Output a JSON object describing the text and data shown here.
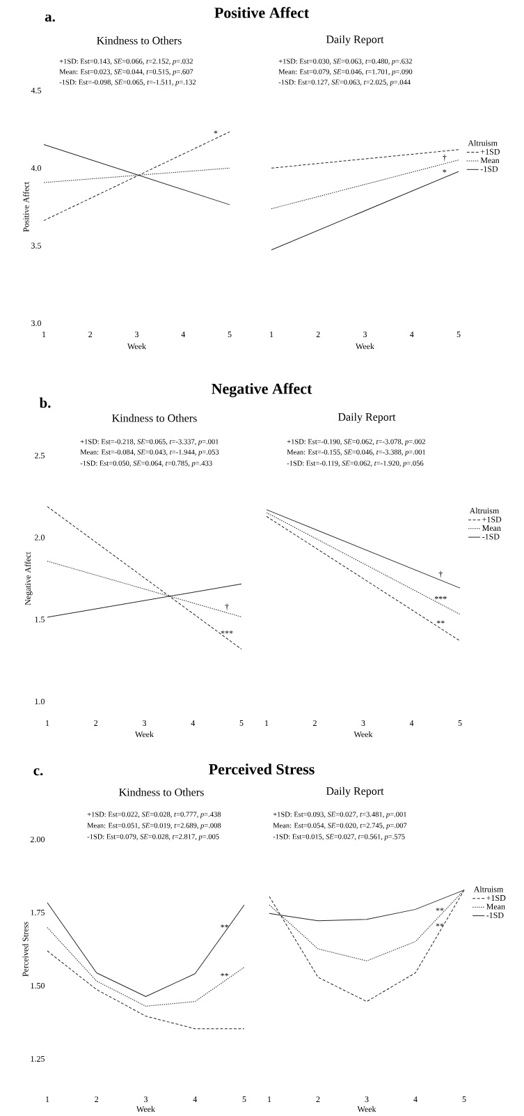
{
  "chart_data": [
    {
      "type": "line",
      "title": "Positive Affect",
      "subtitle": "Kindness to Others",
      "xlabel": "Week",
      "ylabel": "Positive Affect",
      "xlim": [
        1,
        5
      ],
      "xticks": [
        1,
        2,
        3,
        4,
        5
      ],
      "ylim": [
        3,
        4.5
      ],
      "yticks": [
        {
          "value": 3,
          "label": "3.0"
        },
        3.5,
        {
          "value": 4,
          "label": "4.0"
        },
        4.5
      ],
      "annotations": [
        "a.",
        "+1SD: Est=0.143, *SE*=0.066, *t*=2.152, *p*=.032",
        "Mean: Est=0.023, *SE*=0.044, *t*=0.515, *p*=.607",
        "-1SD: Est=-0.098, *SE*=0.065, *t*=-1.511, *p*=.132",
        {
          "text": "*",
          "x": 4.7,
          "y": 4.191
        }
      ],
      "series": [
        {
          "color": "#222222",
          "line_style": "dashed",
          "x": [
            1,
            5
          ],
          "values": [
            3.662,
            4.234
          ]
        },
        {
          "color": "#222222",
          "line_style": "dotted",
          "x": [
            1,
            5
          ],
          "values": [
            3.907,
            4.0
          ]
        },
        {
          "color": "#222222",
          "line_style": "solid",
          "x": [
            1,
            5
          ],
          "values": [
            4.152,
            3.764
          ]
        }
      ]
    },
    {
      "type": "line",
      "subtitle": "Daily Report",
      "xlabel": "Week",
      "xlim": [
        1,
        5
      ],
      "xticks": [
        1,
        2,
        3,
        4,
        5
      ],
      "ylim": [
        3,
        4.5
      ],
      "tick_labels": "x",
      "legend": "right",
      "legend_title": "Altruism",
      "annotations": [
        "+1SD: Est=0.030, *SE*=0.063, *t*=0.480, *p*=.632",
        "Mean: Est=0.079, *SE*=0.046, *t*=1.701, *p*=.090",
        "-1SD: Est=0.127, *SE*=0.063, *t*=2.025, *p*=.044",
        {
          "text": "†",
          "x": 4.7,
          "y": 4.028
        },
        {
          "text": "*",
          "x": 4.7,
          "y": 3.94
        }
      ],
      "series": [
        {
          "name": "+1SD",
          "color": "#222222",
          "line_style": "dashed",
          "x": [
            1,
            5
          ],
          "values": [
            4.0,
            4.119
          ]
        },
        {
          "name": "Mean",
          "color": "#222222",
          "line_style": "dotted",
          "x": [
            1,
            5
          ],
          "values": [
            3.738,
            4.052
          ]
        },
        {
          "name": "-1SD",
          "color": "#222222",
          "line_style": "solid",
          "x": [
            1,
            5
          ],
          "values": [
            3.473,
            3.978
          ]
        }
      ]
    },
    {
      "type": "line",
      "title": "Negative Affect",
      "subtitle": "Kindness to Others",
      "xlabel": "Week",
      "ylabel": "Negative Affect",
      "xlim": [
        1,
        5
      ],
      "xticks": [
        1,
        2,
        3,
        4,
        5
      ],
      "ylim": [
        1,
        2.5
      ],
      "yticks": [
        {
          "value": 1,
          "label": "1.0"
        },
        1.5,
        {
          "value": 2,
          "label": "2.0"
        },
        2.5
      ],
      "annotations": [
        "b.",
        "+1SD: Est=-0.218, *SE*=0.065, *t*=-3.337, *p*=.001",
        "Mean: Est=-0.084, *SE*=0.043, *t*=-1.944, *p*=.053",
        "-1SD: Est=0.050, *SE*=0.064, *t*=0.785, *p*=.433",
        {
          "text": "†",
          "x": 4.7,
          "y": 1.541
        },
        {
          "text": "***",
          "x": 4.7,
          "y": 1.384
        }
      ],
      "series": [
        {
          "color": "#222222",
          "line_style": "dashed",
          "x": [
            1,
            5
          ],
          "values": [
            2.189,
            1.319
          ]
        },
        {
          "color": "#222222",
          "line_style": "dotted",
          "x": [
            1,
            5
          ],
          "values": [
            1.856,
            1.516
          ]
        },
        {
          "color": "#222222",
          "line_style": "solid",
          "x": [
            1,
            5
          ],
          "values": [
            1.514,
            1.717
          ]
        }
      ]
    },
    {
      "type": "line",
      "subtitle": "Daily Report",
      "xlabel": "Week",
      "xlim": [
        1,
        5
      ],
      "xticks": [
        1,
        2,
        3,
        4,
        5
      ],
      "ylim": [
        1,
        2.5
      ],
      "tick_labels": "x",
      "legend": "right",
      "legend_title": "Altruism",
      "annotations": [
        "+1SD: Est=-0.190, *SE*=0.062, *t*=-3.078, *p*=.002",
        "Mean: Est=-0.155, *SE*=0.046, *t*=-3.388, *p*=.001",
        "-1SD: Est=-0.119, *SE*=0.062, *t*=-1.920, *p*=.056",
        {
          "text": "†",
          "x": 4.6,
          "y": 1.74
        },
        {
          "text": "***",
          "x": 4.6,
          "y": 1.594
        },
        {
          "text": "**",
          "x": 4.6,
          "y": 1.446
        }
      ],
      "series": [
        {
          "name": "+1SD",
          "color": "#222222",
          "line_style": "dashed",
          "x": [
            1,
            5
          ],
          "values": [
            2.129,
            1.37
          ]
        },
        {
          "name": "Mean",
          "color": "#222222",
          "line_style": "dotted",
          "x": [
            1,
            5
          ],
          "values": [
            2.152,
            1.532
          ]
        },
        {
          "name": "-1SD",
          "color": "#222222",
          "line_style": "solid",
          "x": [
            1,
            5
          ],
          "values": [
            2.17,
            1.692
          ]
        }
      ]
    },
    {
      "type": "line",
      "title": "Perceived Stress",
      "subtitle": "Kindness to Others",
      "xlabel": "Week",
      "ylabel": "Perceived Stress",
      "xlim": [
        1,
        5
      ],
      "xticks": [
        1,
        2,
        3,
        4,
        5
      ],
      "ylim": [
        1.25,
        2.0
      ],
      "yticks": [
        1.25,
        {
          "value": 1.5,
          "label": "1.50"
        },
        1.75,
        {
          "value": 2,
          "label": "2.00"
        }
      ],
      "annotations": [
        "c.",
        "+1SD: Est=0.022, *SE*=0.028, *t*=0.777, *p*=.438",
        "Mean: Est=0.051, *SE*=0.019, *t*=2.689, *p*=.008",
        "-1SD: Est=0.079, *SE*=0.028, *t*=2.817, *p*=.005",
        {
          "text": "**",
          "x": 4.6,
          "y": 1.682
        },
        {
          "text": "**",
          "x": 4.6,
          "y": 1.516
        }
      ],
      "series": [
        {
          "color": "#222222",
          "line_style": "dashed",
          "x": [
            1,
            2,
            3,
            4,
            5
          ],
          "values": [
            1.619,
            1.487,
            1.396,
            1.353,
            1.353
          ]
        },
        {
          "color": "#222222",
          "line_style": "dotted",
          "x": [
            1,
            2,
            3,
            4,
            5
          ],
          "values": [
            1.699,
            1.516,
            1.43,
            1.446,
            1.563
          ]
        },
        {
          "color": "#222222",
          "line_style": "solid",
          "x": [
            1,
            2,
            3,
            4,
            5
          ],
          "values": [
            1.784,
            1.544,
            1.463,
            1.541,
            1.776
          ]
        }
      ]
    },
    {
      "type": "line",
      "subtitle": "Daily Report",
      "xlabel": "Week",
      "xlim": [
        1,
        5
      ],
      "xticks": [
        1,
        2,
        3,
        4,
        5
      ],
      "ylim": [
        1.25,
        2.0
      ],
      "tick_labels": "x",
      "legend": "right",
      "legend_title": "Altruism",
      "annotations": [
        "+1SD: Est=0.093, *SE*=0.027, *t*=3.481, *p*=.001",
        "Mean: Est=0.054, *SE*=0.020, *t*=2.745, *p*=.007",
        "-1SD: Est=0.015, *SE*=0.027, *t*=0.561, *p*=.575",
        {
          "text": "**",
          "x": 4.5,
          "y": 1.739
        },
        {
          "text": "**",
          "x": 4.5,
          "y": 1.686
        }
      ],
      "series": [
        {
          "name": "+1SD",
          "color": "#222222",
          "line_style": "dashed",
          "x": [
            1,
            2,
            3,
            4,
            5
          ],
          "values": [
            1.805,
            1.529,
            1.446,
            1.544,
            1.827
          ]
        },
        {
          "name": "Mean",
          "color": "#222222",
          "line_style": "dotted",
          "x": [
            1,
            2,
            3,
            4,
            5
          ],
          "values": [
            1.776,
            1.626,
            1.585,
            1.651,
            1.827
          ]
        },
        {
          "name": "-1SD",
          "color": "#222222",
          "line_style": "solid",
          "x": [
            1,
            2,
            3,
            4,
            5
          ],
          "values": [
            1.747,
            1.722,
            1.727,
            1.761,
            1.827
          ]
        }
      ]
    }
  ]
}
